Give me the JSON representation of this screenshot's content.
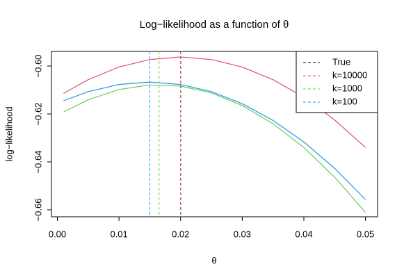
{
  "chart_data": {
    "type": "line",
    "title": "Log−likelihood as a function of θ",
    "x_label": "θ",
    "y_label": "log−likelihood",
    "x": [
      0.001,
      0.005,
      0.01,
      0.015,
      0.02,
      0.025,
      0.03,
      0.035,
      0.04,
      0.045,
      0.05
    ],
    "true_value": 0.02,
    "true_name": "True",
    "true_color": "#000000",
    "series": [
      {
        "name": "k=10000",
        "color": "#DF536B",
        "mle": 0.02,
        "values": [
          -0.6114,
          -0.6057,
          -0.6004,
          -0.5973,
          -0.5962,
          -0.5973,
          -0.6004,
          -0.6057,
          -0.613,
          -0.6225,
          -0.634
        ]
      },
      {
        "name": "k=1000",
        "color": "#61D04F",
        "mle": 0.0165,
        "values": [
          -0.6192,
          -0.6141,
          -0.6098,
          -0.6079,
          -0.6084,
          -0.6112,
          -0.6165,
          -0.6241,
          -0.634,
          -0.6464,
          -0.6611
        ]
      },
      {
        "name": "k=100",
        "color": "#2297E6",
        "mle": 0.015,
        "values": [
          -0.6145,
          -0.6107,
          -0.6077,
          -0.6067,
          -0.6077,
          -0.6107,
          -0.6157,
          -0.6227,
          -0.6317,
          -0.6427,
          -0.6557
        ]
      }
    ],
    "xlim": [
      -0.00096,
      0.05196
    ],
    "ylim": [
      -0.6629,
      -0.5939
    ],
    "xticks": [
      {
        "value": 0,
        "label": "0.00"
      },
      0.01,
      0.02,
      0.03,
      0.04,
      0.05
    ],
    "yticks": [
      {
        "value": -0.66,
        "label": "−0.66"
      },
      {
        "value": -0.64,
        "label": "−0.64"
      },
      {
        "value": -0.62,
        "label": "−0.62"
      },
      {
        "value": -0.6,
        "label": "−0.60"
      }
    ],
    "legend": "top-right"
  }
}
